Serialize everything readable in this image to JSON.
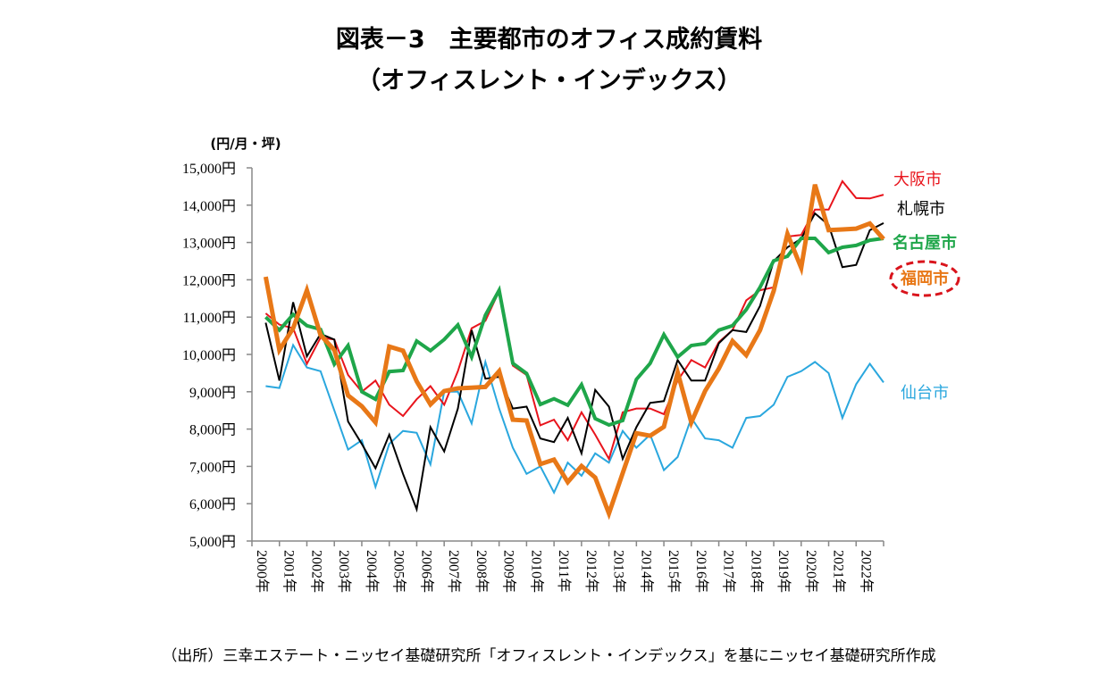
{
  "chart_data": {
    "type": "line",
    "title": "図表－3　主要都市のオフィス成約賃料",
    "subtitle": "（オフィスレント・インデックス）",
    "ylabel": "(円/月・坪)",
    "source": "（出所）三幸エステート・ニッセイ基礎研究所「オフィスレント・インデックス」を基にニッセイ基礎研究所作成",
    "ylim": [
      5000,
      15000
    ],
    "yticks": [
      "5,000円",
      "6,000円",
      "7,000円",
      "8,000円",
      "9,000円",
      "10,000円",
      "11,000円",
      "12,000円",
      "13,000円",
      "14,000円",
      "15,000円"
    ],
    "xlim": [
      2000,
      2023
    ],
    "xticks": [
      "2000年",
      "2001年",
      "2002年",
      "2003年",
      "2004年",
      "2005年",
      "2006年",
      "2007年",
      "2008年",
      "2009年",
      "2010年",
      "2011年",
      "2012年",
      "2013年",
      "2014年",
      "2015年",
      "2016年",
      "2017年",
      "2018年",
      "2019年",
      "2020年",
      "2021年",
      "2022年"
    ],
    "x_start": 2000.5,
    "x_step": 0.5,
    "grid": false,
    "legend": "labels at line ends (right)",
    "series": [
      {
        "name": "大阪市",
        "color": "#e8141c",
        "width": 2,
        "values": [
          11100,
          10800,
          10700,
          9750,
          10450,
          10400,
          9450,
          9000,
          9300,
          8650,
          8350,
          8800,
          9150,
          8650,
          9550,
          10700,
          10900,
          11700,
          9700,
          9450,
          8100,
          8250,
          7700,
          8450,
          7850,
          7200,
          8450,
          8550,
          8550,
          8400,
          9300,
          9850,
          9650,
          10330,
          10650,
          11450,
          11720,
          11800,
          13160,
          13200,
          13880,
          13880,
          14640,
          14190,
          14180,
          14280
        ]
      },
      {
        "name": "札幌市",
        "color": "#000000",
        "width": 2,
        "values": [
          10850,
          9300,
          11400,
          9950,
          10550,
          10400,
          8200,
          7600,
          6950,
          7850,
          6800,
          5850,
          8050,
          7400,
          8550,
          10650,
          9350,
          9400,
          8550,
          8600,
          7750,
          7650,
          8300,
          7350,
          9050,
          8600,
          7200,
          8050,
          8700,
          8750,
          9850,
          9300,
          9300,
          10300,
          10650,
          10600,
          11300,
          12500,
          12870,
          13100,
          13780,
          13470,
          12340,
          12400,
          13330,
          13520
        ]
      },
      {
        "name": "名古屋市",
        "color": "#1fa64a",
        "width": 4,
        "values": [
          11000,
          10650,
          11070,
          10770,
          10670,
          9740,
          10240,
          9000,
          8800,
          9540,
          9570,
          10360,
          10100,
          10400,
          10790,
          9930,
          11050,
          11720,
          9760,
          9490,
          8660,
          8810,
          8640,
          9190,
          8280,
          8110,
          8230,
          9330,
          9760,
          10530,
          9930,
          10240,
          10290,
          10650,
          10770,
          11200,
          11800,
          12510,
          12630,
          13110,
          13110,
          12730,
          12870,
          12920,
          13060,
          13110
        ]
      },
      {
        "name": "福岡市",
        "color": "#e87817",
        "width": 5,
        "values": [
          12080,
          10120,
          10700,
          11720,
          10520,
          10120,
          8900,
          8610,
          8180,
          10210,
          10100,
          9280,
          8660,
          9020,
          9090,
          9110,
          9130,
          9550,
          8250,
          8230,
          7060,
          7180,
          6580,
          7010,
          6700,
          5740,
          6820,
          7890,
          7820,
          8060,
          9520,
          8180,
          9020,
          9620,
          10360,
          9980,
          10650,
          11700,
          13230,
          12320,
          14550,
          13330,
          13350,
          13370,
          13510,
          13090
        ]
      },
      {
        "name": "仙台市",
        "color": "#2aa7de",
        "width": 2,
        "values": [
          9150,
          9100,
          10250,
          9650,
          9550,
          8500,
          7450,
          7700,
          6450,
          7600,
          7950,
          7900,
          7050,
          9000,
          9000,
          8150,
          9800,
          8550,
          7500,
          6800,
          7000,
          6300,
          7100,
          6750,
          7350,
          7100,
          7950,
          7500,
          7850,
          6900,
          7250,
          8300,
          7750,
          7700,
          7500,
          8300,
          8350,
          8650,
          9400,
          9550,
          9800,
          9500,
          8300,
          9200,
          9750,
          9250
        ]
      }
    ],
    "highlight_color": "#d9141c"
  }
}
